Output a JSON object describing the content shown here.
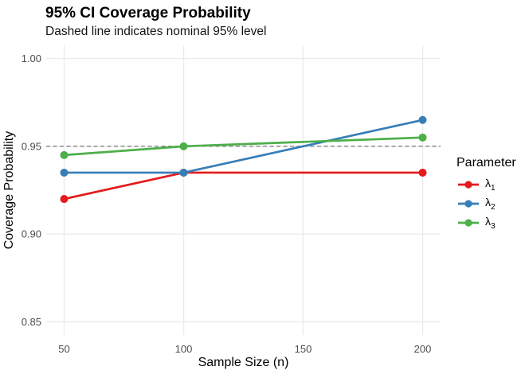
{
  "chart_data": {
    "type": "line",
    "title": "95% CI Coverage Probability",
    "subtitle": "Dashed line indicates nominal 95% level",
    "xlabel": "Sample Size (n)",
    "ylabel": "Coverage Probability",
    "x": [
      50,
      100,
      200
    ],
    "series": [
      {
        "name": "lambda1",
        "label_base": "λ",
        "label_sub": "1",
        "color": "#E41A1C",
        "values": [
          0.92,
          0.935,
          0.935
        ]
      },
      {
        "name": "lambda2",
        "label_base": "λ",
        "label_sub": "2",
        "color": "#377EB8",
        "values": [
          0.935,
          0.935,
          0.965
        ]
      },
      {
        "name": "lambda3",
        "label_base": "λ",
        "label_sub": "3",
        "color": "#4DAF4A",
        "values": [
          0.945,
          0.95,
          0.955
        ]
      }
    ],
    "reference_line": {
      "y": 0.95,
      "style": "dashed",
      "color": "#808080"
    },
    "xlim": [
      50,
      200
    ],
    "ylim": [
      0.85,
      1.0
    ],
    "x_ticks": [
      50,
      100,
      150,
      200
    ],
    "y_ticks": [
      0.85,
      0.9,
      0.95,
      1.0
    ],
    "y_tick_labels": [
      "0.85",
      "0.90",
      "0.95",
      "1.00"
    ],
    "grid": true,
    "legend": {
      "title": "Parameter",
      "position": "right"
    },
    "colors": {
      "grid": "#EBEBEB",
      "tick_label": "#4D4D4D",
      "text": "#000000",
      "background": "#FFFFFF"
    }
  }
}
